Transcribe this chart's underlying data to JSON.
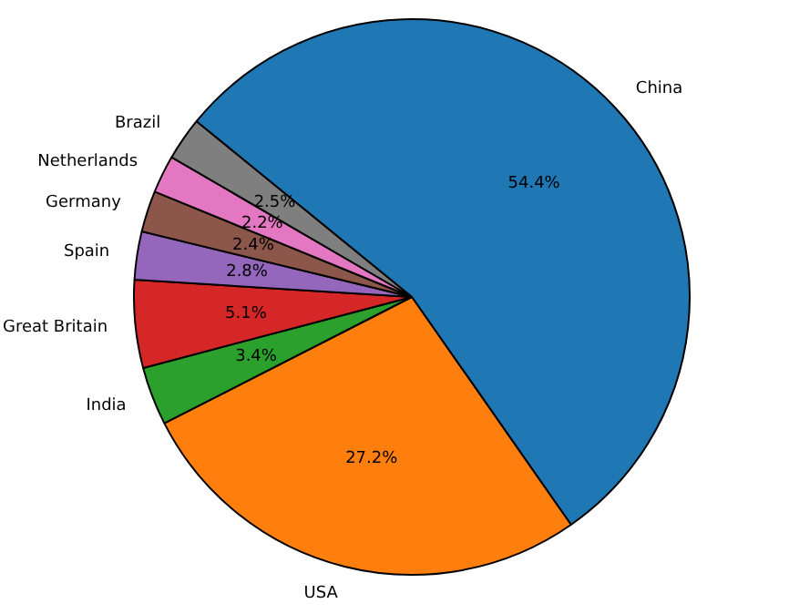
{
  "chart_data": {
    "type": "pie",
    "categories": [
      "China",
      "USA",
      "India",
      "Great Britain",
      "Spain",
      "Germany",
      "Netherlands",
      "Brazil"
    ],
    "values": [
      54.4,
      27.2,
      3.4,
      5.1,
      2.8,
      2.4,
      2.2,
      2.5
    ],
    "value_labels": [
      "54.4%",
      "27.2%",
      "3.4%",
      "5.1%",
      "2.8%",
      "2.4%",
      "2.2%",
      "2.5%"
    ],
    "colors": [
      "#1f77b4",
      "#ff7f0e",
      "#2ca02c",
      "#d62728",
      "#9467bd",
      "#8c564b",
      "#e377c2",
      "#7f7f7f"
    ],
    "legend": false
  }
}
